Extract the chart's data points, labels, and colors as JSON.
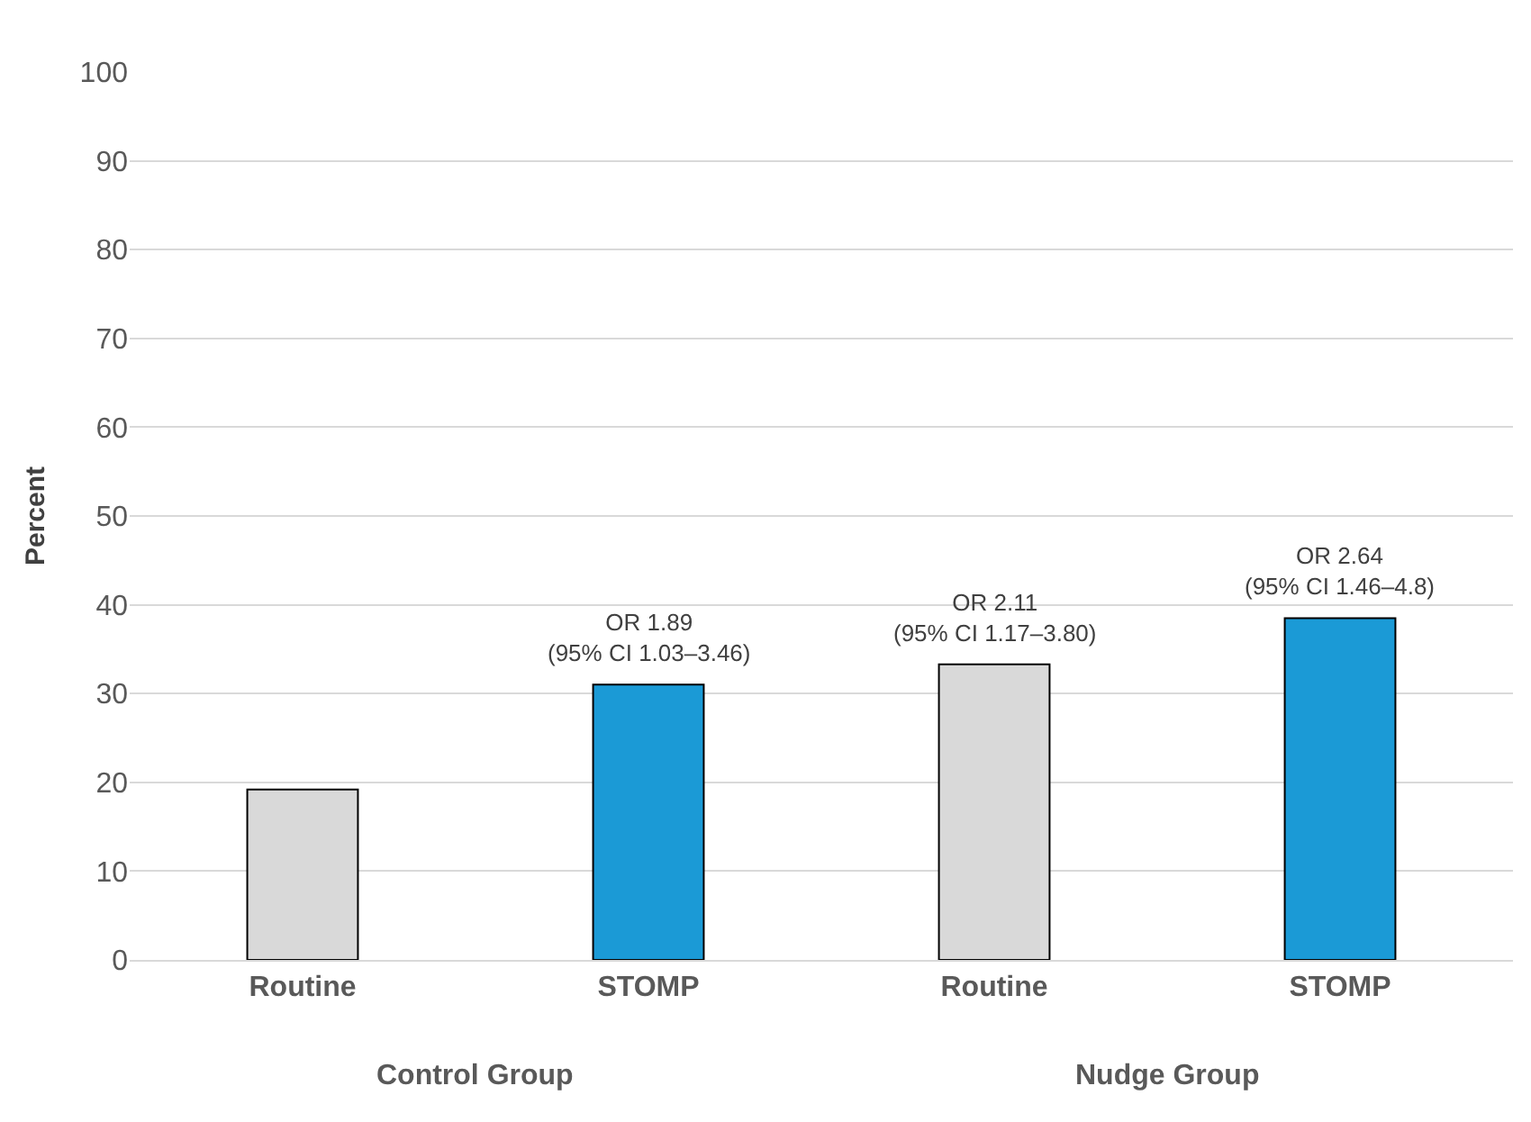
{
  "chart_data": {
    "type": "bar",
    "ylabel": "Percent",
    "categories": [
      "Routine",
      "STOMP",
      "Routine",
      "STOMP"
    ],
    "values": [
      19.2,
      31,
      33.3,
      38.5
    ],
    "colors": [
      "#d9d9d9",
      "#1b9ad6",
      "#d9d9d9",
      "#1b9ad6"
    ],
    "annotations": [
      {
        "text": "OR 1.89\n(95% CI 1.03–3.46)",
        "y": 31
      },
      {
        "text": "OR 2.11\n(95% CI 1.17–3.80)",
        "y": 33.3
      },
      {
        "text": "OR 2.64\n(95% CI 1.46–4.8)",
        "y": 38.5
      },
      "Control Group",
      "Nudge Group"
    ],
    "ylim": [
      0,
      100
    ],
    "yticks": [
      0,
      10,
      20,
      30,
      40,
      50,
      60,
      70,
      80,
      90,
      100
    ],
    "grid": "y"
  }
}
